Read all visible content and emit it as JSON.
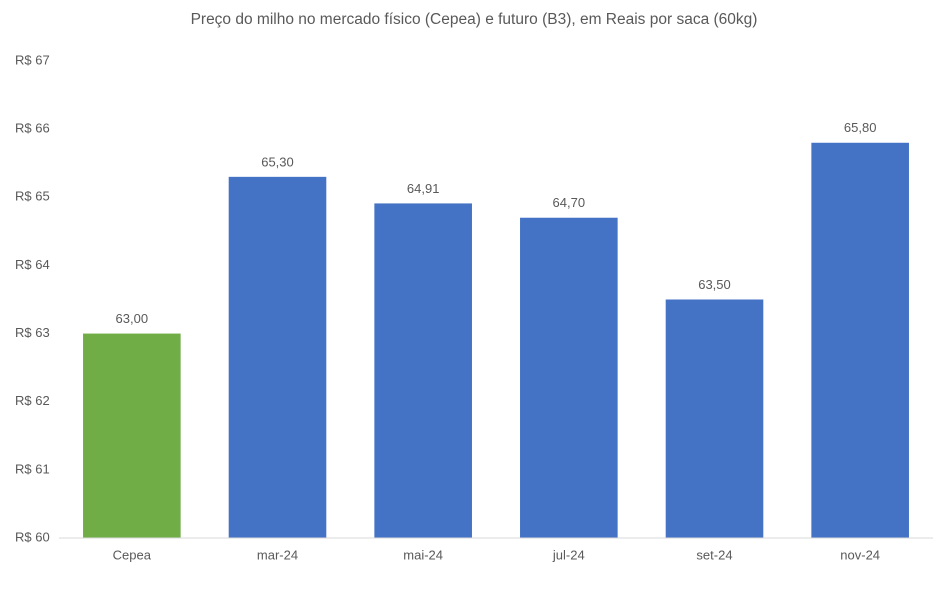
{
  "chart_data": {
    "type": "bar",
    "title": "Preço do milho no mercado físico (Cepea) e futuro (B3), em Reais por saca (60kg)",
    "categories": [
      "Cepea",
      "mar-24",
      "mai-24",
      "jul-24",
      "set-24",
      "nov-24"
    ],
    "values": [
      63.0,
      65.3,
      64.91,
      64.7,
      63.5,
      65.8
    ],
    "value_labels": [
      "63,00",
      "65,30",
      "64,91",
      "64,70",
      "63,50",
      "65,80"
    ],
    "colors": [
      "#70ad47",
      "#4472c4",
      "#4472c4",
      "#4472c4",
      "#4472c4",
      "#4472c4"
    ],
    "ylim": [
      60,
      67
    ],
    "yticks": [
      {
        "value": 60,
        "label": "R$ 60"
      },
      {
        "value": 61,
        "label": "R$ 61"
      },
      {
        "value": 62,
        "label": "R$ 62"
      },
      {
        "value": 63,
        "label": "R$ 63"
      },
      {
        "value": 64,
        "label": "R$ 64"
      },
      {
        "value": 65,
        "label": "R$ 65"
      },
      {
        "value": 66,
        "label": "R$ 66"
      },
      {
        "value": 67,
        "label": "R$ 67"
      }
    ],
    "grid": false
  }
}
